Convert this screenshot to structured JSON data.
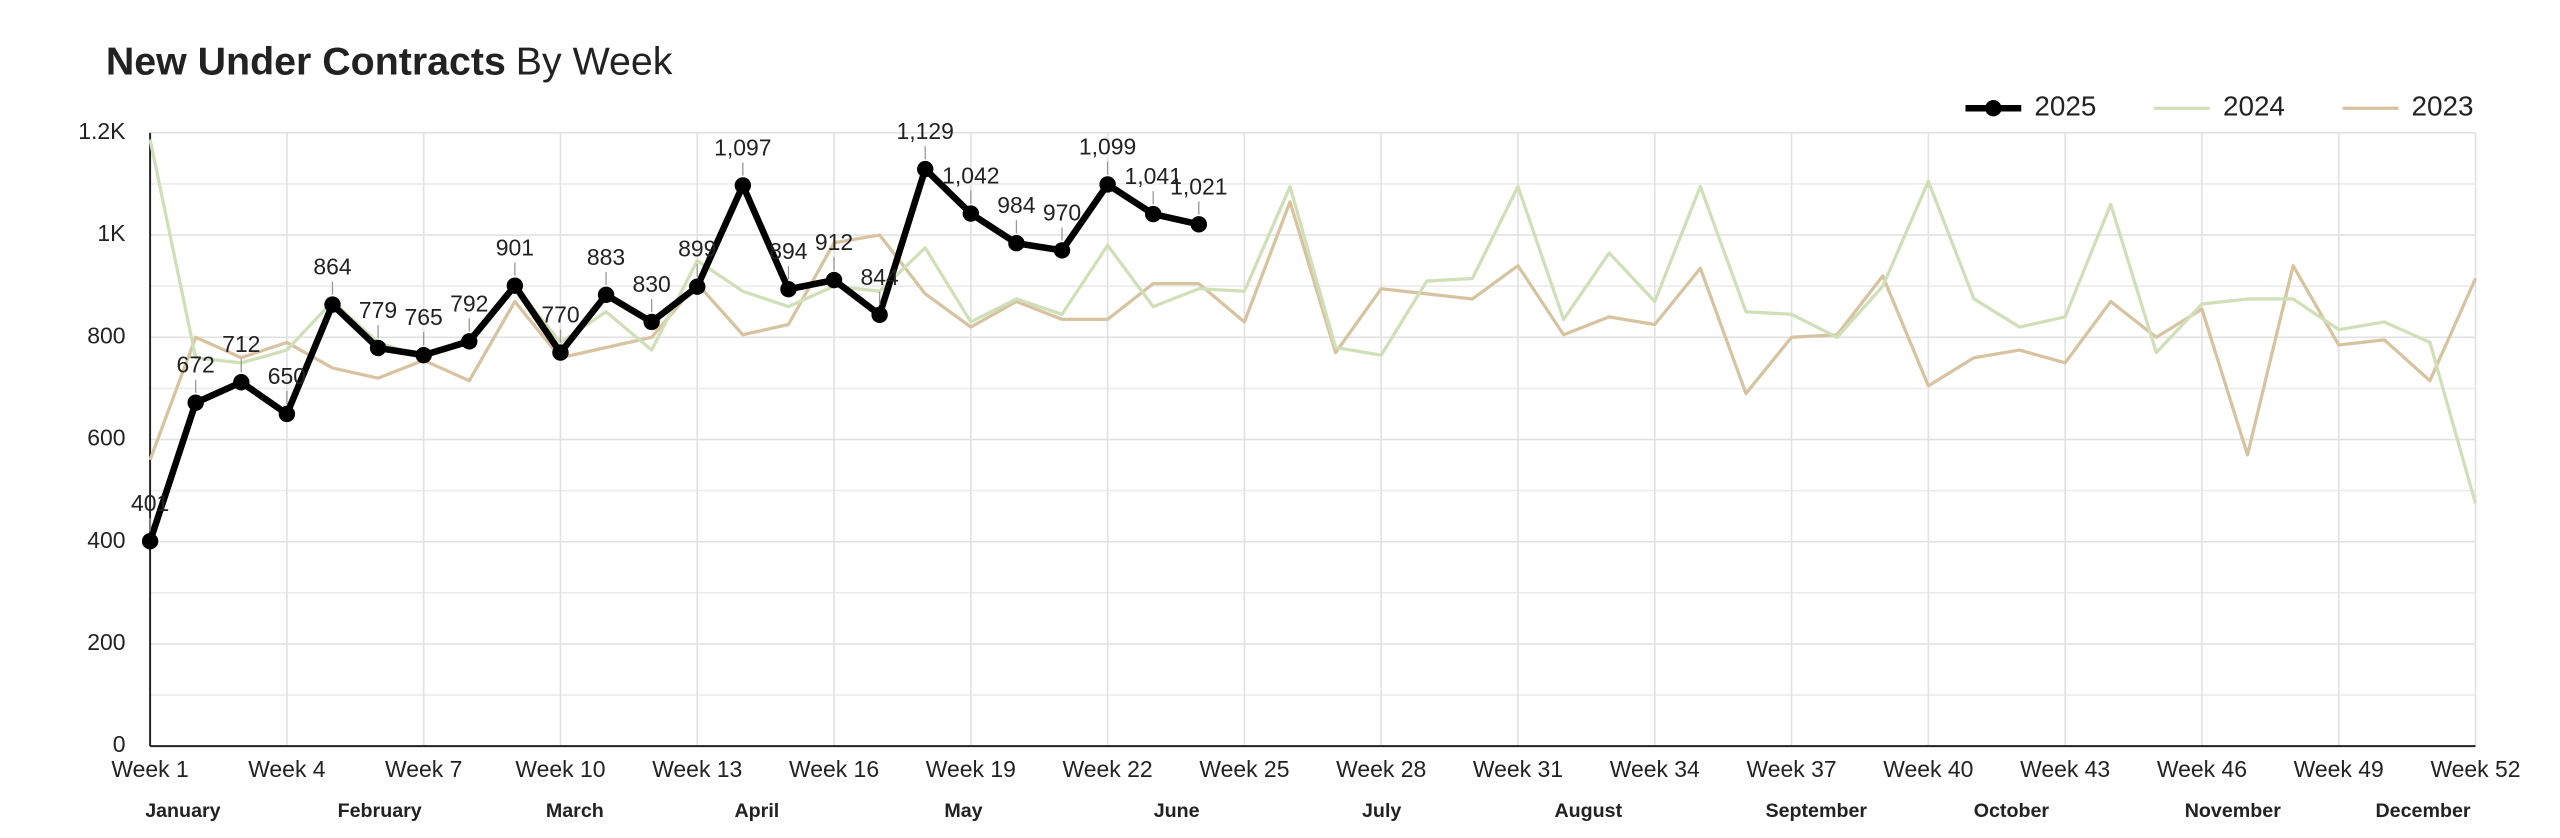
{
  "chart_data": {
    "type": "line",
    "title": "New Under Contracts",
    "subtitle": "By Week",
    "x": [
      1,
      2,
      3,
      4,
      5,
      6,
      7,
      8,
      9,
      10,
      11,
      12,
      13,
      14,
      15,
      16,
      17,
      18,
      19,
      20,
      21,
      22,
      23,
      24,
      25,
      26,
      27,
      28,
      29,
      30,
      31,
      32,
      33,
      34,
      35,
      36,
      37,
      38,
      39,
      40,
      41,
      42,
      43,
      44,
      45,
      46,
      47,
      48,
      49,
      50,
      51,
      52
    ],
    "xlim": [
      1,
      52
    ],
    "xticks": [
      {
        "value": 1,
        "label": "Week 1"
      },
      {
        "value": 4,
        "label": "Week 4"
      },
      {
        "value": 7,
        "label": "Week 7"
      },
      {
        "value": 10,
        "label": "Week 10"
      },
      {
        "value": 13,
        "label": "Week 13"
      },
      {
        "value": 16,
        "label": "Week 16"
      },
      {
        "value": 19,
        "label": "Week 19"
      },
      {
        "value": 22,
        "label": "Week 22"
      },
      {
        "value": 25,
        "label": "Week 25"
      },
      {
        "value": 28,
        "label": "Week 28"
      },
      {
        "value": 31,
        "label": "Week 31"
      },
      {
        "value": 34,
        "label": "Week 34"
      },
      {
        "value": 37,
        "label": "Week 37"
      },
      {
        "value": 40,
        "label": "Week 40"
      },
      {
        "value": 43,
        "label": "Week 43"
      },
      {
        "value": 46,
        "label": "Week 46"
      },
      {
        "value": 49,
        "label": "Week 49"
      },
      {
        "value": 52,
        "label": "Week 52"
      }
    ],
    "months": [
      "January",
      "February",
      "March",
      "April",
      "May",
      "June",
      "July",
      "August",
      "September",
      "October",
      "November",
      "December"
    ],
    "ylim": [
      0,
      1200
    ],
    "yticks": [
      0,
      200,
      400,
      600,
      800,
      {
        "value": 1000,
        "label": "1K"
      },
      {
        "value": 1200,
        "label": "1.2K"
      }
    ],
    "grid": true,
    "legend": "top-right",
    "series": [
      {
        "name": "2025",
        "color": "#000000",
        "values": [
          401,
          672,
          712,
          650,
          864,
          779,
          765,
          792,
          901,
          770,
          883,
          830,
          899,
          1097,
          894,
          912,
          844,
          1129,
          1042,
          984,
          970,
          1099,
          1041,
          1021,
          null,
          null,
          null,
          null,
          null,
          null,
          null,
          null,
          null,
          null,
          null,
          null,
          null,
          null,
          null,
          null,
          null,
          null,
          null,
          null,
          null,
          null,
          null,
          null,
          null,
          null,
          null,
          null
        ],
        "value_labels": [
          "401",
          "672",
          "712",
          "650",
          "864",
          "779",
          "765",
          "792",
          "901",
          "770",
          "883",
          "830",
          "899",
          "1,097",
          "894",
          "912",
          "844",
          "1,129",
          "1,042",
          "984",
          "970",
          "1,099",
          "1,041",
          "1,021",
          null,
          null,
          null,
          null,
          null,
          null,
          null,
          null,
          null,
          null,
          null,
          null,
          null,
          null,
          null,
          null,
          null,
          null,
          null,
          null,
          null,
          null,
          null,
          null,
          null,
          null,
          null,
          null
        ]
      },
      {
        "name": "2024",
        "color": "#cfe0b8",
        "values": [
          1187,
          760,
          750,
          775,
          870,
          790,
          760,
          800,
          900,
          790,
          850,
          775,
          950,
          890,
          860,
          900,
          890,
          975,
          830,
          875,
          845,
          980,
          860,
          895,
          890,
          1095,
          780,
          765,
          910,
          915,
          1095,
          835,
          965,
          870,
          1095,
          850,
          845,
          800,
          900,
          1105,
          875,
          820,
          840,
          1060,
          770,
          865,
          875,
          875,
          815,
          830,
          790,
          475
        ]
      },
      {
        "name": "2023",
        "color": "#d8c3a0",
        "values": [
          560,
          800,
          760,
          790,
          740,
          720,
          755,
          715,
          870,
          760,
          780,
          800,
          905,
          805,
          825,
          985,
          1000,
          885,
          820,
          870,
          835,
          835,
          905,
          905,
          830,
          1065,
          770,
          895,
          885,
          875,
          940,
          805,
          840,
          825,
          935,
          690,
          800,
          805,
          920,
          705,
          760,
          775,
          750,
          870,
          800,
          855,
          570,
          940,
          785,
          795,
          715,
          915
        ]
      }
    ]
  }
}
